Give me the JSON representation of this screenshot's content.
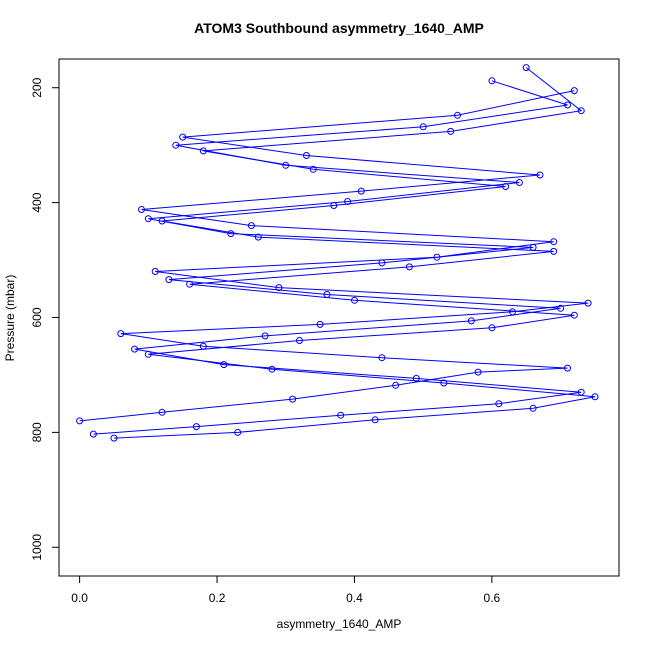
{
  "chart_data": {
    "type": "line",
    "title": "ATOM3 Southbound asymmetry_1640_AMP",
    "xlabel": "asymmetry_1640_AMP",
    "ylabel": "Pressure (mbar)",
    "xlim": [
      -0.03,
      0.785
    ],
    "ylim": [
      1050,
      150
    ],
    "y_reversed": true,
    "x_ticks": [
      0.0,
      0.2,
      0.4,
      0.6
    ],
    "y_ticks": [
      200,
      400,
      600,
      800,
      1000
    ],
    "x_tick_labels": [
      "0.0",
      "0.2",
      "0.4",
      "0.6"
    ],
    "y_tick_labels": [
      "200",
      "400",
      "600",
      "800",
      "1000"
    ],
    "grid": false,
    "legend": "none",
    "markers": "open-circle",
    "color": "#0000ff",
    "series": [
      {
        "x": [
          0.0,
          0.12,
          0.31,
          0.46,
          0.58,
          0.71,
          0.44,
          0.18,
          0.06,
          0.35,
          0.63,
          0.74,
          0.29,
          0.11,
          0.52,
          0.69,
          0.25,
          0.09,
          0.41,
          0.67,
          0.33,
          0.15,
          0.55,
          0.72
        ],
        "y": [
          780,
          765,
          742,
          718,
          695,
          688,
          670,
          650,
          628,
          612,
          590,
          575,
          548,
          520,
          495,
          468,
          440,
          412,
          380,
          352,
          318,
          286,
          248,
          205
        ]
      },
      {
        "x": [
          0.02,
          0.17,
          0.38,
          0.61,
          0.73,
          0.49,
          0.21,
          0.08,
          0.27,
          0.57,
          0.7,
          0.36,
          0.13,
          0.44,
          0.66,
          0.22,
          0.1,
          0.39,
          0.64,
          0.3,
          0.14,
          0.5,
          0.71,
          0.6
        ],
        "y": [
          803,
          790,
          770,
          750,
          730,
          706,
          682,
          655,
          632,
          606,
          584,
          560,
          534,
          505,
          478,
          454,
          428,
          398,
          365,
          335,
          300,
          268,
          230,
          188
        ]
      },
      {
        "x": [
          0.05,
          0.23,
          0.43,
          0.66,
          0.75,
          0.53,
          0.28,
          0.1,
          0.32,
          0.6,
          0.72,
          0.4,
          0.16,
          0.48,
          0.69,
          0.26,
          0.12,
          0.37,
          0.62,
          0.34,
          0.18,
          0.54,
          0.73,
          0.65
        ],
        "y": [
          810,
          800,
          778,
          758,
          738,
          714,
          690,
          664,
          640,
          618,
          596,
          570,
          542,
          512,
          485,
          460,
          432,
          405,
          372,
          342,
          310,
          276,
          240,
          165
        ]
      }
    ]
  }
}
